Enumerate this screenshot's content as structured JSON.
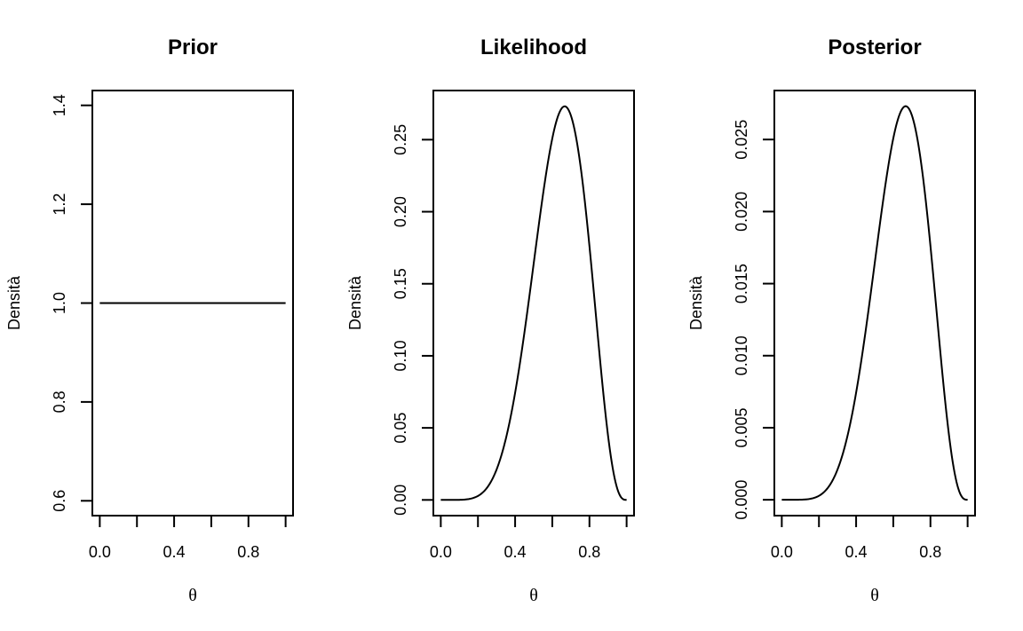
{
  "chart_data": [
    {
      "type": "line",
      "title": "Prior",
      "xlabel": "θ",
      "ylabel": "Densità",
      "xlim": [
        -0.04,
        1.04
      ],
      "ylim": [
        0.57,
        1.43
      ],
      "xticks": [
        0.0,
        0.2,
        0.4,
        0.6,
        0.8,
        1.0
      ],
      "xtick_labels": [
        "0.0",
        "",
        "0.4",
        "",
        "0.8",
        ""
      ],
      "yticks": [
        0.6,
        0.8,
        1.0,
        1.2,
        1.4
      ],
      "ytick_labels": [
        "0.6",
        "0.8",
        "1.0",
        "1.2",
        "1.4"
      ],
      "series": [
        {
          "kind": "formula",
          "formula": "uniform",
          "scale": 1.0,
          "color": "#000000"
        }
      ]
    },
    {
      "type": "line",
      "title": "Likelihood",
      "xlabel": "θ",
      "ylabel": "Densità",
      "xlim": [
        -0.04,
        1.04
      ],
      "ylim": [
        -0.0109,
        0.2841
      ],
      "xticks": [
        0.0,
        0.2,
        0.4,
        0.6,
        0.8,
        1.0
      ],
      "xtick_labels": [
        "0.0",
        "",
        "0.4",
        "",
        "0.8",
        ""
      ],
      "yticks": [
        0.0,
        0.05,
        0.1,
        0.15,
        0.2,
        0.25
      ],
      "ytick_labels": [
        "0.00",
        "0.05",
        "0.10",
        "0.15",
        "0.20",
        "0.25"
      ],
      "series": [
        {
          "kind": "formula",
          "formula": "binomial",
          "n": 9,
          "k": 6,
          "scale": 1.0,
          "color": "#000000"
        }
      ]
    },
    {
      "type": "line",
      "title": "Posterior",
      "xlabel": "θ",
      "ylabel": "Densità",
      "xlim": [
        -0.04,
        1.04
      ],
      "ylim": [
        -0.0011,
        0.0284
      ],
      "xticks": [
        0.0,
        0.2,
        0.4,
        0.6,
        0.8,
        1.0
      ],
      "xtick_labels": [
        "0.0",
        "",
        "0.4",
        "",
        "0.8",
        ""
      ],
      "yticks": [
        0.0,
        0.005,
        0.01,
        0.015,
        0.02,
        0.025
      ],
      "ytick_labels": [
        "0.000",
        "0.005",
        "0.010",
        "0.015",
        "0.020",
        "0.025"
      ],
      "series": [
        {
          "kind": "formula",
          "formula": "binomial",
          "n": 9,
          "k": 6,
          "scale": 0.1,
          "color": "#000000"
        }
      ]
    }
  ]
}
